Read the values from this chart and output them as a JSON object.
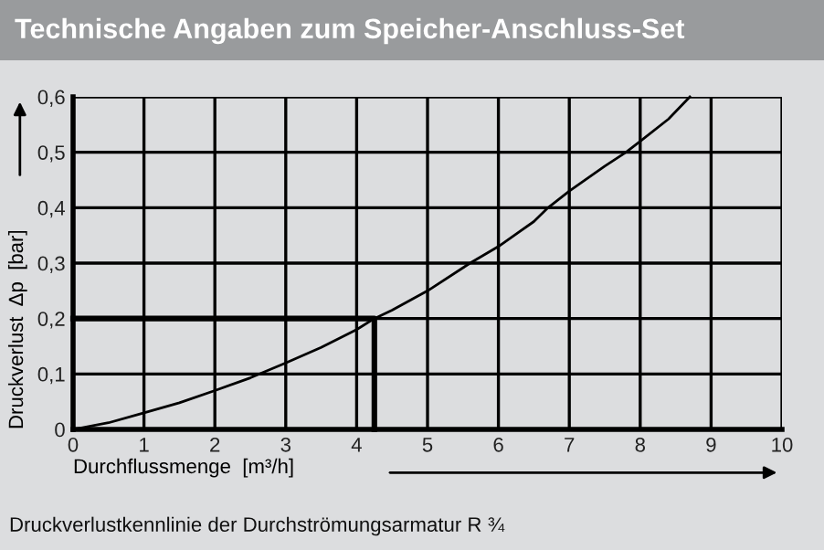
{
  "chart_data": {
    "type": "line",
    "title": "Technische Angaben zum Speicher-Anschluss-Set",
    "xlabel": "Durchflussmenge  [m³/h]",
    "ylabel": "Druckverlust  Δp  [bar]",
    "annotations": [
      "Druckverlustkennlinie der Durchströmungsarmatur R ¾"
    ],
    "series": [
      {
        "color": "#000000",
        "x": [
          0,
          0.5,
          1,
          1.5,
          2,
          2.5,
          3,
          3.5,
          4,
          4.25,
          4.5,
          5,
          5.6,
          6,
          6.5,
          6.7,
          7,
          7.5,
          7.8,
          8,
          8.4,
          8.7
        ],
        "values": [
          0,
          0.012,
          0.03,
          0.048,
          0.07,
          0.093,
          0.12,
          0.148,
          0.18,
          0.2,
          0.215,
          0.25,
          0.3,
          0.33,
          0.375,
          0.4,
          0.43,
          0.475,
          0.5,
          0.52,
          0.56,
          0.6
        ]
      },
      {
        "color": "#000000",
        "x": [
          0,
          4.25,
          4.25
        ],
        "values": [
          0.2,
          0.2,
          0
        ]
      }
    ],
    "xlim": [
      0,
      10
    ],
    "ylim": [
      0,
      0.6
    ],
    "xticks": [
      0,
      1,
      2,
      3,
      4,
      5,
      6,
      7,
      8,
      9,
      10
    ],
    "yticks": [
      0,
      {
        "value": 0.1,
        "label": "0,1"
      },
      {
        "value": 0.2,
        "label": "0,2"
      },
      {
        "value": 0.3,
        "label": "0,3"
      },
      {
        "value": 0.4,
        "label": "0,4"
      },
      {
        "value": 0.5,
        "label": "0,5"
      },
      {
        "value": 0.6,
        "label": "0,6"
      }
    ],
    "grid": true,
    "marker": "none",
    "line_style": "solid"
  }
}
